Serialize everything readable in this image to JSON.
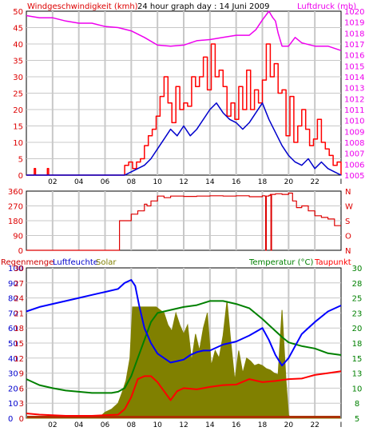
{
  "panels": {
    "wind": {
      "title_left": "Windgeschwindigkeit (kmh)",
      "title_center": "24 hour graph day : 14 Juni 2009",
      "title_right": "Luftdruck (mb)"
    },
    "direction": {},
    "weather": {
      "title_rain": "Regenmenge",
      "title_humidity": "Luftfeuchte",
      "title_solar": "Solar",
      "title_temp": "Temperatur (°C)",
      "title_dew": "Taupunkt"
    }
  },
  "colors": {
    "wind_gust": "#ff0000",
    "wind_avg": "#0000cc",
    "pressure": "#ee00ee",
    "direction": "#dd0000",
    "humidity": "#0000ff",
    "solar": "#808000",
    "temperature": "#008000",
    "dewpoint": "#ff0000",
    "rain": "#aa3300",
    "grid": "#c8c8c8"
  },
  "chart_data": [
    {
      "type": "line",
      "id": "wind_pressure",
      "x_ticks": [
        "02",
        "04",
        "06",
        "08",
        "10",
        "12",
        "14",
        "16",
        "18",
        "20",
        "22",
        "I"
      ],
      "ylim_left": [
        0,
        50
      ],
      "yticks_left": [
        0,
        5,
        10,
        15,
        20,
        25,
        30,
        35,
        40,
        45,
        50
      ],
      "ylim_right": [
        1005,
        1020
      ],
      "yticks_right": [
        1005,
        1006,
        1007,
        1008,
        1009,
        1010,
        1011,
        1012,
        1013,
        1014,
        1015,
        1016,
        1017,
        1018,
        1019,
        1020
      ],
      "series": [
        {
          "key": "gust",
          "axis": "left",
          "x": [
            0,
            0.6,
            0.7,
            1.6,
            1.7,
            6,
            7.3,
            7.5,
            7.8,
            8.1,
            8.4,
            8.7,
            9.0,
            9.3,
            9.6,
            9.9,
            10.2,
            10.5,
            10.8,
            11.1,
            11.4,
            11.7,
            12.0,
            12.3,
            12.6,
            12.9,
            13.2,
            13.5,
            13.8,
            14.1,
            14.4,
            14.7,
            15.0,
            15.3,
            15.6,
            15.9,
            16.2,
            16.5,
            16.8,
            17.1,
            17.4,
            17.7,
            18.0,
            18.3,
            18.6,
            18.9,
            19.2,
            19.5,
            19.8,
            20.1,
            20.4,
            20.7,
            21.0,
            21.3,
            21.6,
            21.9,
            22.2,
            22.5,
            22.8,
            23.1,
            23.4,
            23.7,
            24.0
          ],
          "y": [
            0,
            2,
            0,
            2,
            0,
            0,
            0,
            3,
            4,
            2,
            4,
            5,
            9,
            12,
            14,
            18,
            24,
            30,
            22,
            16,
            27,
            20,
            22,
            21,
            30,
            27,
            30,
            36,
            26,
            40,
            30,
            32,
            27,
            18,
            22,
            17,
            27,
            20,
            32,
            20,
            26,
            22,
            29,
            40,
            30,
            34,
            25,
            26,
            12,
            24,
            10,
            15,
            20,
            14,
            9,
            11,
            17,
            10,
            8,
            6,
            3,
            4,
            0
          ]
        },
        {
          "key": "average",
          "axis": "left",
          "x": [
            0,
            7.5,
            8.0,
            8.5,
            9.0,
            9.5,
            10.0,
            10.5,
            11.0,
            11.5,
            12.0,
            12.5,
            13.0,
            13.5,
            14.0,
            14.5,
            15.0,
            15.5,
            16.0,
            16.5,
            17.0,
            17.5,
            18.0,
            18.5,
            19.0,
            19.5,
            20.0,
            20.5,
            21.0,
            21.5,
            22.0,
            22.5,
            23.0,
            23.5,
            24.0
          ],
          "y": [
            0,
            0,
            1,
            2,
            3,
            5,
            8,
            11,
            14,
            12,
            15,
            12,
            14,
            17,
            20,
            22,
            19,
            17,
            16,
            14,
            16,
            19,
            22,
            17,
            13,
            9,
            6,
            4,
            3,
            5,
            2,
            4,
            2,
            1,
            0
          ]
        },
        {
          "key": "pressure",
          "axis": "right",
          "x": [
            0,
            1,
            2,
            3,
            4,
            5,
            6,
            7,
            8,
            9,
            10,
            11,
            12,
            13,
            14,
            15,
            16,
            17,
            17.5,
            18,
            18.5,
            18.8,
            19.0,
            19.2,
            19.5,
            20,
            20.5,
            21,
            22,
            23,
            24
          ],
          "y": [
            1019.6,
            1019.4,
            1019.4,
            1019.1,
            1018.9,
            1018.9,
            1018.6,
            1018.5,
            1018.2,
            1017.6,
            1016.9,
            1016.8,
            1016.9,
            1017.3,
            1017.4,
            1017.6,
            1017.8,
            1017.8,
            1018.3,
            1019.2,
            1020.0,
            1019.4,
            1019.1,
            1018.0,
            1016.8,
            1016.8,
            1017.6,
            1017.1,
            1016.8,
            1016.8,
            1016.4
          ]
        }
      ]
    },
    {
      "type": "line",
      "id": "wind_direction",
      "x_ticks": [
        "02",
        "04",
        "06",
        "08",
        "10",
        "12",
        "14",
        "16",
        "18",
        "20",
        "22",
        "I"
      ],
      "ylim": [
        0,
        360
      ],
      "yticks_left": [
        "0",
        "90",
        "180",
        "270",
        "360"
      ],
      "yticks_right": [
        "N",
        "O",
        "S",
        "W",
        "N"
      ],
      "series": [
        {
          "key": "direction",
          "x": [
            0,
            7.0,
            7.1,
            7.9,
            8.0,
            8.5,
            9.0,
            9.2,
            9.5,
            10.0,
            10.5,
            11,
            12,
            13,
            14,
            15,
            16,
            17,
            18,
            18.2,
            18.25,
            18.3,
            18.5,
            18.6,
            18.65,
            18.7,
            19,
            19.5,
            20,
            20.3,
            20.6,
            21,
            21.5,
            22,
            22.5,
            23,
            23.5,
            24
          ],
          "y": [
            0,
            0,
            180,
            180,
            220,
            240,
            280,
            270,
            300,
            330,
            320,
            330,
            328,
            330,
            332,
            330,
            332,
            326,
            332,
            330,
            0,
            330,
            334,
            340,
            0,
            340,
            344,
            340,
            348,
            300,
            260,
            270,
            240,
            210,
            200,
            190,
            150,
            150
          ]
        }
      ]
    },
    {
      "type": "line",
      "id": "climate",
      "x_ticks": [
        "02",
        "04",
        "06",
        "08",
        "10",
        "12",
        "14",
        "16",
        "18",
        "20",
        "22",
        "I"
      ],
      "ylim_humidity": [
        0,
        100
      ],
      "yticks_humidity": [
        0,
        10,
        20,
        30,
        40,
        50,
        60,
        70,
        80,
        90,
        100
      ],
      "ylim_rain": [
        0,
        30
      ],
      "yticks_rain": [
        0,
        3,
        6,
        9,
        12,
        15,
        18,
        21,
        24,
        27,
        30
      ],
      "ylim_temp": [
        5,
        30
      ],
      "yticks_temp": [
        5,
        8,
        10,
        13,
        15,
        18,
        20,
        23,
        25,
        28,
        30
      ],
      "series": [
        {
          "key": "humidity",
          "axis": "humidity",
          "x": [
            0,
            1,
            2,
            3,
            4,
            5,
            6,
            7,
            7.5,
            8.0,
            8.3,
            8.6,
            9.0,
            9.5,
            10.0,
            10.5,
            11.0,
            11.5,
            12.0,
            12.5,
            13.0,
            13.5,
            14.0,
            15.0,
            16.0,
            17.0,
            18.0,
            18.5,
            19.0,
            19.5,
            20.0,
            21.0,
            22.0,
            23.0,
            24.0
          ],
          "y": [
            71,
            74,
            76,
            78,
            80,
            82,
            84,
            86,
            90,
            92,
            88,
            75,
            60,
            50,
            43,
            40,
            37,
            38,
            39,
            42,
            44,
            45,
            45,
            49,
            51,
            55,
            60,
            52,
            42,
            35,
            40,
            56,
            64,
            71,
            75
          ]
        },
        {
          "key": "temperature",
          "axis": "temp",
          "x": [
            0,
            1,
            2,
            3,
            4,
            5,
            6,
            6.5,
            7.0,
            7.5,
            8.0,
            8.5,
            9.0,
            9.5,
            10.0,
            11.0,
            12.0,
            13.0,
            14.0,
            15.0,
            16.0,
            17.0,
            18.0,
            19.0,
            19.5,
            20.0,
            21.0,
            22.0,
            23.0,
            24.0
          ],
          "y": [
            11.5,
            10.5,
            10.0,
            9.6,
            9.4,
            9.2,
            9.2,
            9.2,
            9.4,
            10,
            12,
            15,
            18,
            21,
            22.5,
            23.0,
            23.5,
            23.8,
            24.5,
            24.5,
            24.0,
            23.3,
            21.5,
            19.5,
            18.5,
            17.6,
            17.0,
            16.6,
            15.8,
            15.5
          ]
        },
        {
          "key": "dewpoint",
          "axis": "temp",
          "x": [
            0,
            1,
            2,
            3,
            4,
            5,
            6,
            7.0,
            7.5,
            8.0,
            8.5,
            9.0,
            9.5,
            10.0,
            10.5,
            11.0,
            11.5,
            12.0,
            13.0,
            14.0,
            15.0,
            16.0,
            17.0,
            18.0,
            19.0,
            20.0,
            21.0,
            22.0,
            23.0,
            24.0
          ],
          "y": [
            5.8,
            5.6,
            5.5,
            5.4,
            5.4,
            5.4,
            5.5,
            5.6,
            6.5,
            8.5,
            11.5,
            12.0,
            12.0,
            11.0,
            9.5,
            8.0,
            9.5,
            10.0,
            9.8,
            10.2,
            10.5,
            10.6,
            11.5,
            11.0,
            11.2,
            11.5,
            11.6,
            12.2,
            12.5,
            12.8
          ]
        },
        {
          "key": "solar",
          "axis": "humidity",
          "x": [
            0,
            5.5,
            6.0,
            6.5,
            7.0,
            7.3,
            7.6,
            7.9,
            8.1,
            8.4,
            8.7,
            9.0,
            9.3,
            9.6,
            9.9,
            10.2,
            10.5,
            10.8,
            11.1,
            11.4,
            11.7,
            12.0,
            12.3,
            12.6,
            12.9,
            13.2,
            13.5,
            13.8,
            14.1,
            14.4,
            14.7,
            15.0,
            15.3,
            15.6,
            15.9,
            16.2,
            16.5,
            16.8,
            17.1,
            17.4,
            17.7,
            18.0,
            18.3,
            18.6,
            18.9,
            19.2,
            19.5,
            19.8,
            20.0,
            20.2,
            24.0
          ],
          "y": [
            0,
            0,
            4,
            6,
            10,
            17,
            25,
            40,
            74,
            74,
            74,
            74,
            74,
            74,
            74,
            72,
            70,
            62,
            58,
            70,
            62,
            56,
            62,
            38,
            56,
            45,
            60,
            70,
            35,
            45,
            40,
            55,
            78,
            50,
            25,
            45,
            30,
            40,
            38,
            35,
            36,
            35,
            33,
            32,
            30,
            29,
            72,
            25,
            2,
            0,
            0
          ]
        },
        {
          "key": "rain",
          "axis": "rain",
          "x": [
            0,
            24
          ],
          "y": [
            0,
            0
          ]
        }
      ]
    }
  ]
}
